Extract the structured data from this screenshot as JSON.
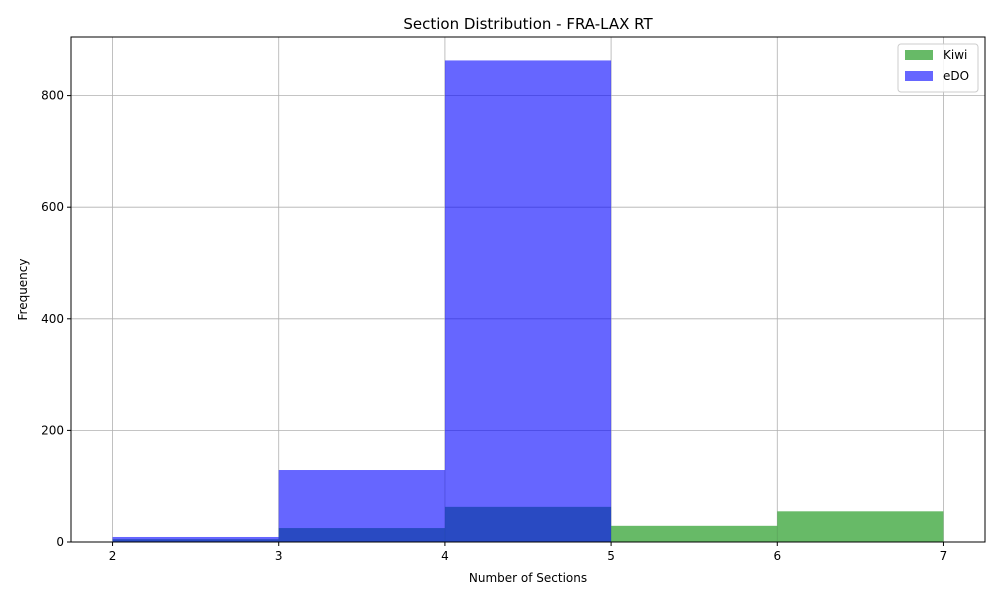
{
  "chart_data": {
    "type": "bar",
    "title": "Section Distribution - FRA-LAX RT",
    "xlabel": "Number of Sections",
    "ylabel": "Frequency",
    "xlim": [
      1.75,
      7.25
    ],
    "ylim": [
      0,
      905
    ],
    "xticks": [
      2,
      3,
      4,
      5,
      6,
      7
    ],
    "yticks": [
      0,
      200,
      400,
      600,
      800
    ],
    "grid": true,
    "legend_position": "top-right",
    "bins": [
      [
        2,
        3
      ],
      [
        3,
        4
      ],
      [
        4,
        5
      ],
      [
        5,
        6
      ],
      [
        6,
        7
      ]
    ],
    "series": [
      {
        "name": "Kiwi",
        "color": "#2ca02c",
        "opacity": 0.72,
        "values": [
          5,
          25,
          63,
          29,
          55
        ]
      },
      {
        "name": "eDO",
        "color": "#0000ff",
        "opacity": 0.6,
        "values": [
          9,
          129,
          863,
          0,
          0
        ]
      }
    ]
  }
}
